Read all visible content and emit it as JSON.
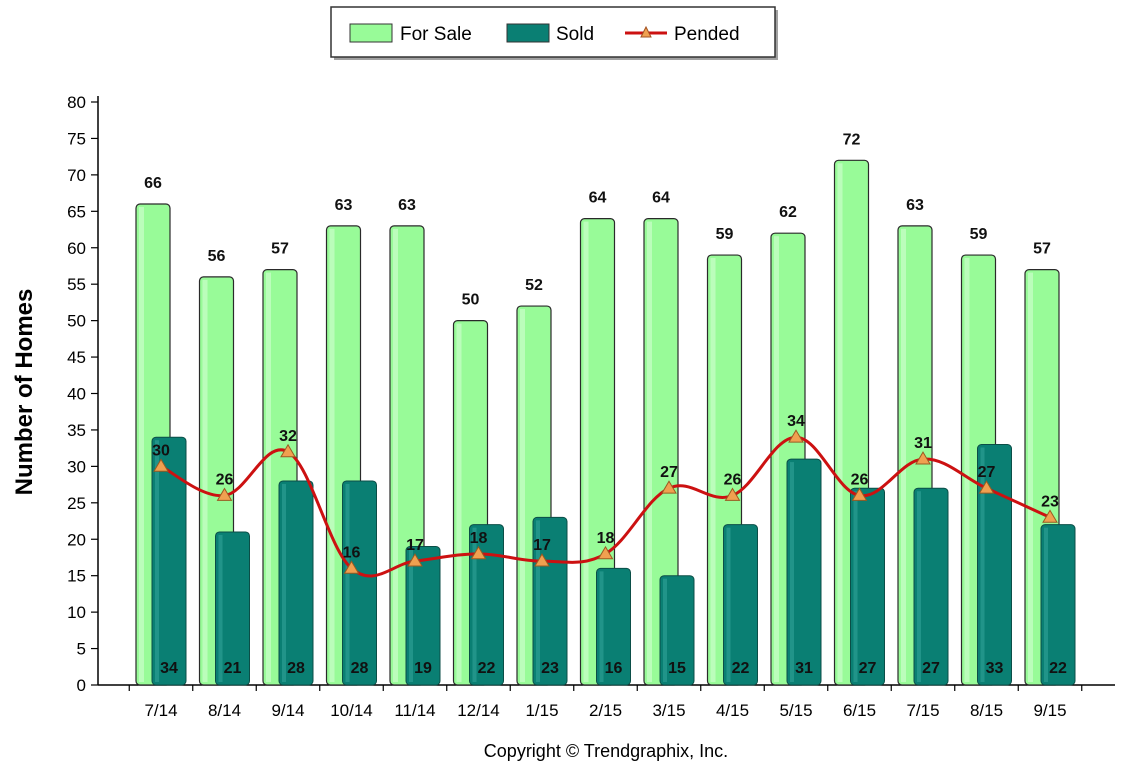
{
  "chart_data": {
    "type": "bar",
    "categories": [
      "7/14",
      "8/14",
      "9/14",
      "10/14",
      "11/14",
      "12/14",
      "1/15",
      "2/15",
      "3/15",
      "4/15",
      "5/15",
      "6/15",
      "7/15",
      "8/15",
      "9/15"
    ],
    "series": [
      {
        "name": "For Sale",
        "type": "bar",
        "color": "#98fb98",
        "values": [
          66,
          56,
          57,
          63,
          63,
          50,
          52,
          64,
          64,
          59,
          62,
          72,
          63,
          59,
          57
        ]
      },
      {
        "name": "Sold",
        "type": "bar",
        "color": "#0a7f73",
        "values": [
          34,
          21,
          28,
          28,
          19,
          22,
          23,
          16,
          15,
          22,
          31,
          27,
          27,
          33,
          22
        ]
      },
      {
        "name": "Pended",
        "type": "line",
        "color": "#cc1111",
        "marker_color": "#f0a050",
        "values": [
          30,
          26,
          32,
          16,
          17,
          18,
          17,
          18,
          27,
          26,
          34,
          26,
          31,
          27,
          23
        ]
      }
    ],
    "ylabel": "Number of Homes",
    "xlabel": "",
    "ylim": [
      0,
      80
    ],
    "ytick_step": 5,
    "legend_position": "top-center",
    "grid": false
  },
  "footer": {
    "copyright": "Copyright © Trendgraphix, Inc."
  }
}
